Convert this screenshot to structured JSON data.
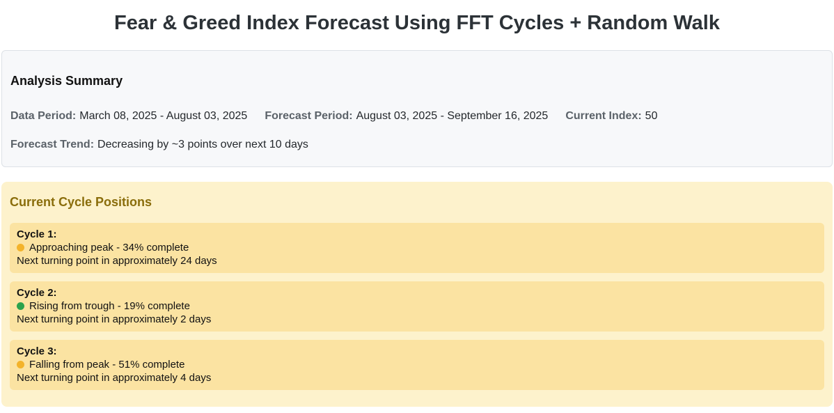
{
  "page": {
    "title": "Fear & Greed Index Forecast Using FFT Cycles + Random Walk"
  },
  "summary": {
    "heading": "Analysis Summary",
    "data_period_label": "Data Period:",
    "data_period_value": "March 08, 2025 - August 03, 2025",
    "forecast_period_label": "Forecast Period:",
    "forecast_period_value": "August 03, 2025 - September 16, 2025",
    "current_index_label": "Current Index:",
    "current_index_value": "50",
    "forecast_trend_label": "Forecast Trend:",
    "forecast_trend_value": "Decreasing by ~3 points over next 10 days"
  },
  "cycles": {
    "heading": "Current Cycle Positions",
    "items": [
      {
        "title": "Cycle 1:",
        "status": "Approaching peak - 34% complete",
        "dot_color": "#f3b32b",
        "next": "Next turning point in approximately 24 days"
      },
      {
        "title": "Cycle 2:",
        "status": "Rising from trough - 19% complete",
        "dot_color": "#2ba24c",
        "next": "Next turning point in approximately 2 days"
      },
      {
        "title": "Cycle 3:",
        "status": "Falling from peak - 51% complete",
        "dot_color": "#f3b32b",
        "next": "Next turning point in approximately 4 days"
      }
    ]
  },
  "colors": {
    "heading_gold": "#8a6d0b",
    "panel_cream": "#fdf2cc",
    "card_yellow": "#fbe3a2",
    "summary_bg": "#f7f8fa",
    "dot_amber": "#f3b32b",
    "dot_green": "#2ba24c"
  }
}
